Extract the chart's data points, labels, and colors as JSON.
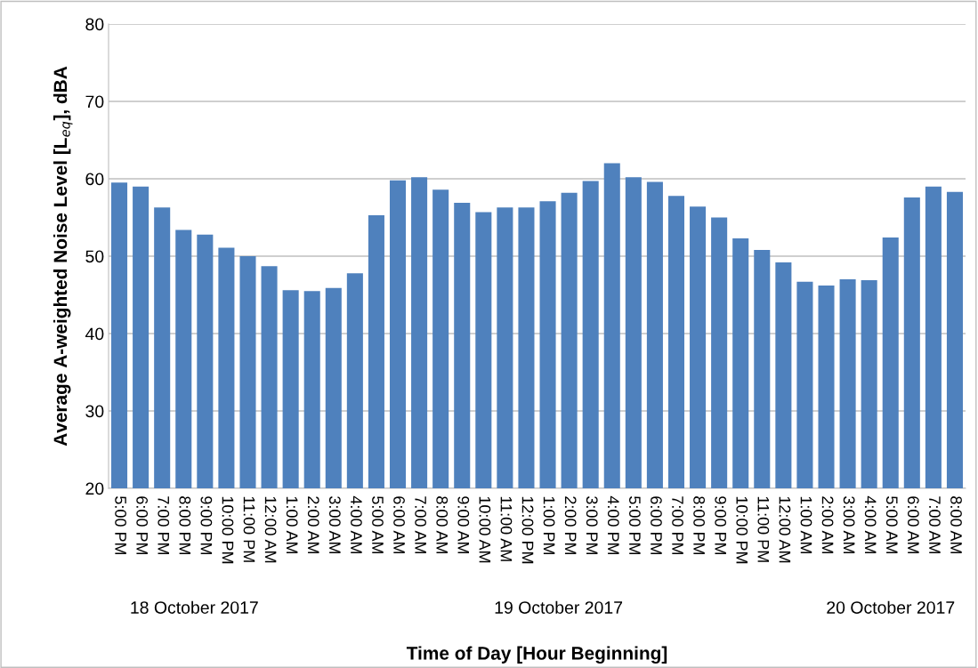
{
  "chart_data": {
    "type": "bar",
    "xlabel": "Time of Day [Hour Beginning]",
    "ylabel": "Average A-weighted Noise Level [L$_{eq}$], dBA",
    "categories": [
      "5:00 PM",
      "6:00 PM",
      "7:00 PM",
      "8:00 PM",
      "9:00 PM",
      "10:00 PM",
      "11:00 PM",
      "12:00 AM",
      "1:00 AM",
      "2:00 AM",
      "3:00 AM",
      "4:00 AM",
      "5:00 AM",
      "6:00 AM",
      "7:00 AM",
      "8:00 AM",
      "9:00 AM",
      "10:00 AM",
      "11:00 AM",
      "12:00 PM",
      "1:00 PM",
      "2:00 PM",
      "3:00 PM",
      "4:00 PM",
      "5:00 PM",
      "6:00 PM",
      "7:00 PM",
      "8:00 PM",
      "9:00 PM",
      "10:00 PM",
      "11:00 PM",
      "12:00 AM",
      "1:00 AM",
      "2:00 AM",
      "3:00 AM",
      "4:00 AM",
      "5:00 AM",
      "6:00 AM",
      "7:00 AM",
      "8:00 AM"
    ],
    "values": [
      59.5,
      59.0,
      56.3,
      53.4,
      52.8,
      51.1,
      50.0,
      48.7,
      45.6,
      45.5,
      45.9,
      47.8,
      55.3,
      59.8,
      60.2,
      58.6,
      56.9,
      55.7,
      56.3,
      56.3,
      57.1,
      58.2,
      59.7,
      62.0,
      60.2,
      59.6,
      57.8,
      56.4,
      55.0,
      52.3,
      50.8,
      49.2,
      46.7,
      46.2,
      47.0,
      46.9,
      52.4,
      57.6,
      59.0,
      58.3
    ],
    "color": "#4f81bd",
    "ylim": [
      20,
      80
    ],
    "yticks": [
      20,
      30,
      40,
      50,
      60,
      70,
      80
    ],
    "grid": "y",
    "annotations": [
      "18 October 2017",
      "19 October 2017",
      "20 October 2017"
    ]
  }
}
